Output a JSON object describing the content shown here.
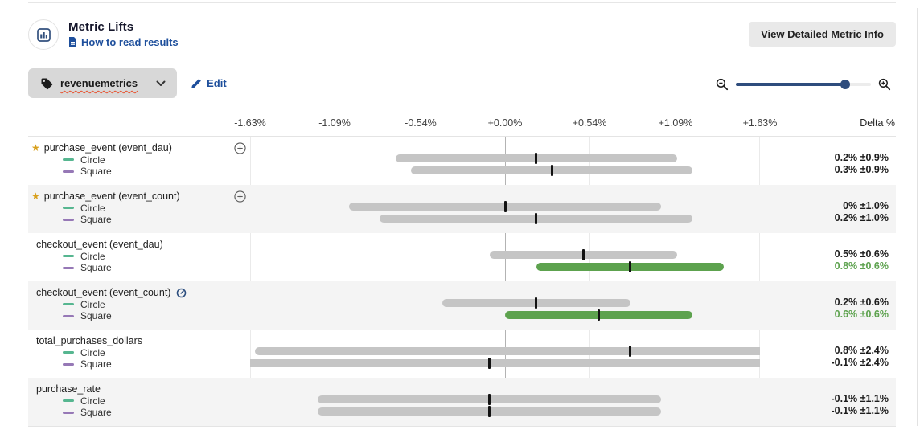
{
  "header": {
    "title": "Metric Lifts",
    "subtitle_link": "How to read results",
    "detail_button": "View Detailed Metric Info"
  },
  "toolbar": {
    "tag": "revenuemetrics",
    "edit": "Edit"
  },
  "zoom_control": {
    "value_pct": 81
  },
  "colors": {
    "link_blue": "#1e4f9c",
    "slider_navy": "#2f4d7d",
    "bar_gray": "#c5c5c5",
    "bar_green": "#5da24e",
    "circle_dash": "#56b690",
    "square_dash": "#9678b6",
    "star_gold": "#d8a01d",
    "row_alt_bg": "#f4f4f4"
  },
  "chart_data": {
    "type": "interval-bar",
    "axis": {
      "title": "Delta %",
      "tick_labels": [
        "-1.63%",
        "-1.09%",
        "-0.54%",
        "+0.00%",
        "+0.54%",
        "+1.09%",
        "+1.63%"
      ],
      "tick_values": [
        -1.63,
        -1.09,
        -0.54,
        0.0,
        0.54,
        1.09,
        1.63
      ],
      "min_pct": -1.63,
      "max_pct": 1.63,
      "zero_line": true,
      "grid": true
    },
    "variants": [
      "Circle",
      "Square"
    ],
    "rows": [
      {
        "metric": "purchase_event (event_dau)",
        "starred": true,
        "expandable": true,
        "badge": false,
        "series": [
          {
            "variant": "Circle",
            "delta_pct": 0.2,
            "interval_pct": 0.9,
            "label": "0.2% ±0.9%",
            "significant": false
          },
          {
            "variant": "Square",
            "delta_pct": 0.3,
            "interval_pct": 0.9,
            "label": "0.3% ±0.9%",
            "significant": false
          }
        ]
      },
      {
        "metric": "purchase_event (event_count)",
        "starred": true,
        "expandable": true,
        "badge": false,
        "series": [
          {
            "variant": "Circle",
            "delta_pct": 0.0,
            "interval_pct": 1.0,
            "label": "0% ±1.0%",
            "significant": false
          },
          {
            "variant": "Square",
            "delta_pct": 0.2,
            "interval_pct": 1.0,
            "label": "0.2% ±1.0%",
            "significant": false
          }
        ]
      },
      {
        "metric": "checkout_event (event_dau)",
        "starred": false,
        "expandable": false,
        "badge": false,
        "series": [
          {
            "variant": "Circle",
            "delta_pct": 0.5,
            "interval_pct": 0.6,
            "label": "0.5% ±0.6%",
            "significant": false
          },
          {
            "variant": "Square",
            "delta_pct": 0.8,
            "interval_pct": 0.6,
            "label": "0.8% ±0.6%",
            "significant": true
          }
        ]
      },
      {
        "metric": "checkout_event (event_count)",
        "starred": false,
        "expandable": false,
        "badge": true,
        "series": [
          {
            "variant": "Circle",
            "delta_pct": 0.2,
            "interval_pct": 0.6,
            "label": "0.2% ±0.6%",
            "significant": false
          },
          {
            "variant": "Square",
            "delta_pct": 0.6,
            "interval_pct": 0.6,
            "label": "0.6% ±0.6%",
            "significant": true
          }
        ]
      },
      {
        "metric": "total_purchases_dollars",
        "starred": false,
        "expandable": false,
        "badge": false,
        "series": [
          {
            "variant": "Circle",
            "delta_pct": 0.8,
            "interval_pct": 2.4,
            "label": "0.8% ±2.4%",
            "significant": false
          },
          {
            "variant": "Square",
            "delta_pct": -0.1,
            "interval_pct": 2.4,
            "label": "-0.1% ±2.4%",
            "significant": false
          }
        ]
      },
      {
        "metric": "purchase_rate",
        "starred": false,
        "expandable": false,
        "badge": false,
        "series": [
          {
            "variant": "Circle",
            "delta_pct": -0.1,
            "interval_pct": 1.1,
            "label": "-0.1% ±1.1%",
            "significant": false
          },
          {
            "variant": "Square",
            "delta_pct": -0.1,
            "interval_pct": 1.1,
            "label": "-0.1% ±1.1%",
            "significant": false
          }
        ]
      }
    ]
  }
}
